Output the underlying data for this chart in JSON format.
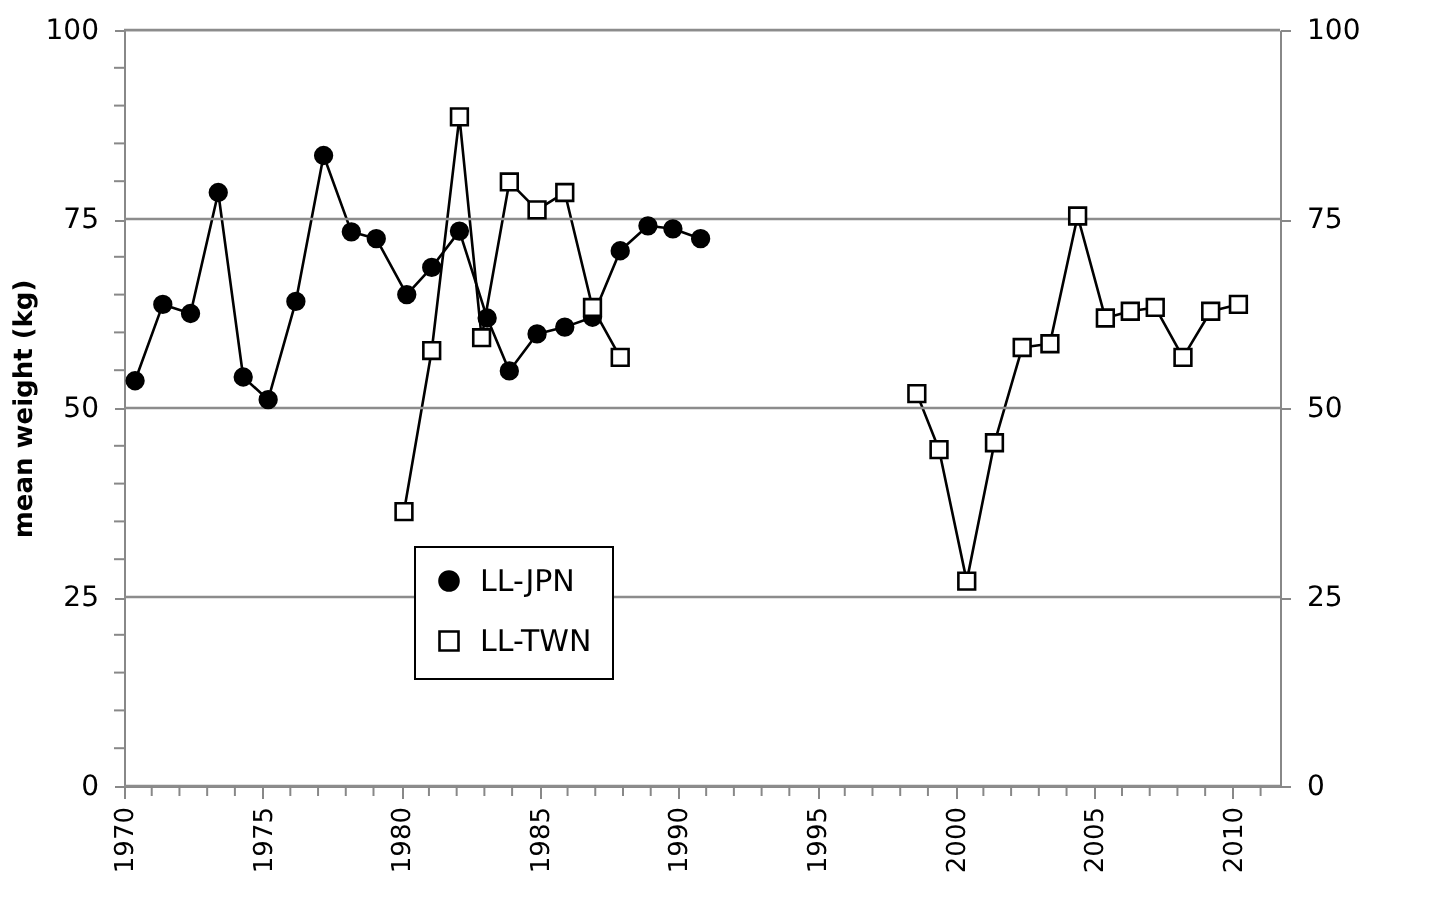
{
  "chart_data": {
    "type": "line",
    "ylabel": "mean weight (kg)",
    "xlim": [
      1970,
      2011.7
    ],
    "xticks": [
      1970,
      {
        "value": 1971,
        "label": null
      },
      {
        "value": 1972,
        "label": null
      },
      {
        "value": 1973,
        "label": null
      },
      {
        "value": 1974,
        "label": null
      },
      1975,
      {
        "value": 1976,
        "label": null
      },
      {
        "value": 1977,
        "label": null
      },
      {
        "value": 1978,
        "label": null
      },
      {
        "value": 1979,
        "label": null
      },
      1980,
      {
        "value": 1981,
        "label": null
      },
      {
        "value": 1982,
        "label": null
      },
      {
        "value": 1983,
        "label": null
      },
      {
        "value": 1984,
        "label": null
      },
      1985,
      {
        "value": 1986,
        "label": null
      },
      {
        "value": 1987,
        "label": null
      },
      {
        "value": 1988,
        "label": null
      },
      {
        "value": 1989,
        "label": null
      },
      1990,
      {
        "value": 1991,
        "label": null
      },
      {
        "value": 1992,
        "label": null
      },
      {
        "value": 1993,
        "label": null
      },
      {
        "value": 1994,
        "label": null
      },
      1995,
      {
        "value": 1996,
        "label": null
      },
      {
        "value": 1997,
        "label": null
      },
      {
        "value": 1998,
        "label": null
      },
      {
        "value": 1999,
        "label": null
      },
      2000,
      {
        "value": 2001,
        "label": null
      },
      {
        "value": 2002,
        "label": null
      },
      {
        "value": 2003,
        "label": null
      },
      {
        "value": 2004,
        "label": null
      },
      2005,
      {
        "value": 2006,
        "label": null
      },
      {
        "value": 2007,
        "label": null
      },
      {
        "value": 2008,
        "label": null
      },
      {
        "value": 2009,
        "label": null
      },
      2010,
      {
        "value": 2011,
        "label": null
      }
    ],
    "ylim": [
      0,
      100
    ],
    "yticks": [
      0,
      {
        "value": 5,
        "label": null
      },
      {
        "value": 10,
        "label": null
      },
      {
        "value": 15,
        "label": null
      },
      {
        "value": 20,
        "label": null
      },
      25,
      {
        "value": 30,
        "label": null
      },
      {
        "value": 35,
        "label": null
      },
      {
        "value": 40,
        "label": null
      },
      {
        "value": 45,
        "label": null
      },
      50,
      {
        "value": 55,
        "label": null
      },
      {
        "value": 60,
        "label": null
      },
      {
        "value": 65,
        "label": null
      },
      {
        "value": 70,
        "label": null
      },
      75,
      {
        "value": 80,
        "label": null
      },
      {
        "value": 85,
        "label": null
      },
      {
        "value": 90,
        "label": null
      },
      {
        "value": 95,
        "label": null
      },
      100
    ],
    "y2lim": [
      0,
      100
    ],
    "y2ticks": [
      0,
      25,
      50,
      75,
      100
    ],
    "grid": "y",
    "legend": "bottom left",
    "line_style": "solid",
    "series": [
      {
        "name": "LL-JPN",
        "color": "#000000",
        "marker": "circle",
        "x": [
          1970.4,
          1971.4,
          1972.4,
          1973.4,
          1974.3,
          1975.2,
          1976.2,
          1977.2,
          1978.2,
          1979.1,
          1980.2,
          1981.1,
          1982.1,
          1983.1,
          1983.9,
          1984.9,
          1985.9,
          1986.9,
          1987.9,
          1988.9,
          1989.8,
          1990.8
        ],
        "values": [
          53.6,
          63.7,
          62.5,
          78.5,
          54.1,
          51.1,
          64.1,
          83.4,
          73.3,
          72.4,
          65.0,
          68.6,
          73.4,
          61.9,
          54.9,
          59.8,
          60.7,
          62.0,
          70.8,
          74.1,
          73.7,
          72.4
        ]
      },
      {
        "name": "LL-TWN",
        "color": "#000000",
        "marker": "square",
        "x": [
          1980.1,
          1981.1,
          1982.1,
          1982.9,
          1983.9,
          1984.9,
          1985.9,
          1986.9,
          1987.9,
          1993,
          1998.6,
          1999.4,
          2000.4,
          2001.4,
          2002.4,
          2003.4,
          2004.4,
          2005.4,
          2006.3,
          2007.2,
          2008.2,
          2009.2,
          2010.2
        ],
        "values": [
          36.3,
          57.6,
          88.5,
          59.3,
          79.9,
          76.2,
          78.5,
          63.3,
          56.7,
          null,
          51.9,
          44.5,
          27.1,
          45.4,
          58.0,
          58.5,
          75.4,
          61.9,
          62.8,
          63.3,
          56.7,
          62.8,
          63.7
        ]
      }
    ]
  }
}
